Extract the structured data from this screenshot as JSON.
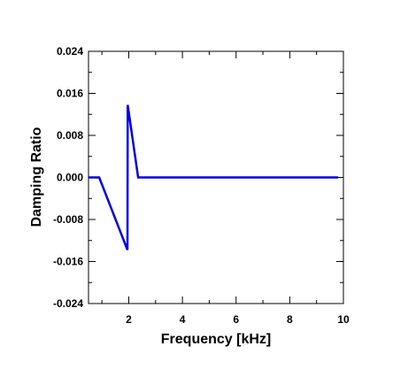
{
  "chart_data": {
    "type": "line",
    "title": "",
    "xlabel": "Frequency [kHz]",
    "ylabel": "Damping Ratio",
    "xlim": [
      0.5,
      10
    ],
    "ylim": [
      -0.024,
      0.024
    ],
    "x_ticks": [
      2,
      4,
      6,
      8,
      10
    ],
    "x_tick_labels": [
      "2",
      "4",
      "6",
      "8",
      "10"
    ],
    "y_ticks": [
      -0.024,
      -0.016,
      -0.008,
      0.0,
      0.008,
      0.016,
      0.024
    ],
    "y_tick_labels": [
      "-0.024",
      "-0.016",
      "-0.008",
      "0.000",
      "0.008",
      "0.016",
      "0.024"
    ],
    "grid": false,
    "legend": "none",
    "series": [
      {
        "color": "#0000dd",
        "x": [
          0.5,
          0.9,
          1.95,
          1.96,
          2.35,
          9.8
        ],
        "y": [
          0.0,
          0.0,
          -0.0138,
          0.0138,
          0.0,
          0.0
        ]
      }
    ]
  }
}
